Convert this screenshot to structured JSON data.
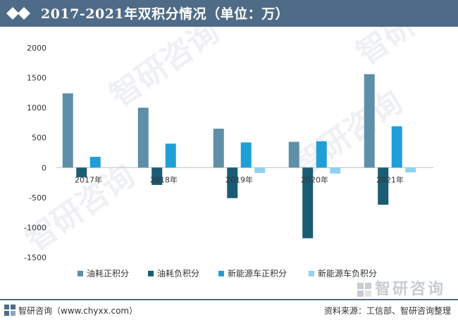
{
  "header": {
    "title": "2017-2021年双积分情况（单位：万）"
  },
  "footer": {
    "left": "智研咨询（www.chyxx.com）",
    "right": "资料来源：工信部、智研咨询整理"
  },
  "watermark": {
    "logo_text": "智研咨询"
  },
  "colors": {
    "header_bg": "#4e6b87",
    "s1": "#5f8fa8",
    "s2": "#1a5c73",
    "s3": "#1f9fd8",
    "s4": "#8fd3f2"
  },
  "chart_data": {
    "type": "bar",
    "title": "2017-2021年双积分情况（单位：万）",
    "categories": [
      "2017年",
      "2018年",
      "2019年",
      "2020年",
      "2021年"
    ],
    "series": [
      {
        "name": "油耗正积分",
        "color": "#5f8fa8",
        "values": [
          1240,
          1000,
          650,
          430,
          1560
        ]
      },
      {
        "name": "油耗负积分",
        "color": "#1a5c73",
        "values": [
          -160,
          -290,
          -510,
          -1180,
          -620
        ]
      },
      {
        "name": "新能源车正积分",
        "color": "#1f9fd8",
        "values": [
          180,
          400,
          420,
          440,
          690
        ]
      },
      {
        "name": "新能源车负积分",
        "color": "#8fd3f2",
        "values": [
          0,
          0,
          -90,
          -100,
          -80
        ]
      }
    ],
    "yticks": [
      "2000",
      "1500",
      "1000",
      "500",
      "0",
      "-500",
      "-1000",
      "-1500"
    ],
    "ylim": [
      -1500,
      2000
    ],
    "legend_position": "bottom"
  }
}
